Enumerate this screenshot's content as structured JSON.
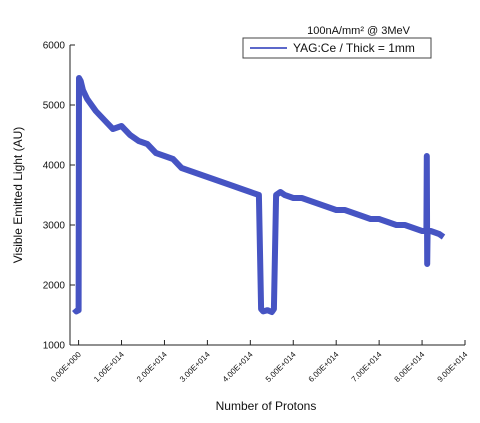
{
  "chart_data": {
    "type": "line",
    "subtitle": "100nA/mm² @ 3MeV",
    "xlabel": "Number of Protons",
    "ylabel": "Visible Emitted Light (AU)",
    "xlim": [
      -20000000000000,
      900000000000000
    ],
    "ylim": [
      1000,
      6000
    ],
    "x_tick_values": [
      0,
      100000000000000,
      200000000000000,
      300000000000000,
      400000000000000,
      500000000000000,
      600000000000000,
      700000000000000,
      800000000000000,
      900000000000000
    ],
    "x_tick_labels": [
      "0.00E+000",
      "1.00E+014",
      "2.00E+014",
      "3.00E+014",
      "4.00E+014",
      "5.00E+014",
      "6.00E+014",
      "7.00E+014",
      "8.00E+014",
      "9.00E+014"
    ],
    "y_tick_values": [
      1000,
      2000,
      3000,
      4000,
      5000,
      6000
    ],
    "y_tick_labels": [
      "1000",
      "2000",
      "3000",
      "4000",
      "5000",
      "6000"
    ],
    "grid": false,
    "legend_position": "top-right",
    "color": "#2636b8",
    "series": [
      {
        "name": "YAG:Ce / Thick = 1mm",
        "color": "#2636b8",
        "x": [
          -10000000000000,
          -5000000000000,
          0,
          1000000000000,
          5000000000000,
          10000000000000,
          20000000000000,
          40000000000000,
          60000000000000,
          80000000000000,
          100000000000000,
          120000000000000,
          140000000000000,
          160000000000000,
          180000000000000,
          200000000000000,
          220000000000000,
          240000000000000,
          260000000000000,
          280000000000000,
          300000000000000,
          320000000000000,
          340000000000000,
          360000000000000,
          380000000000000,
          400000000000000,
          420000000000000,
          425000000000000,
          430000000000000,
          440000000000000,
          450000000000000,
          455000000000000,
          460000000000000,
          470000000000000,
          480000000000000,
          500000000000000,
          520000000000000,
          540000000000000,
          560000000000000,
          580000000000000,
          600000000000000,
          620000000000000,
          640000000000000,
          660000000000000,
          680000000000000,
          700000000000000,
          720000000000000,
          740000000000000,
          760000000000000,
          780000000000000,
          800000000000000,
          810000000000000,
          811000000000000,
          812000000000000,
          813000000000000,
          820000000000000,
          840000000000000,
          850000000000000
        ],
        "y": [
          1600,
          1560,
          1580,
          5450,
          5400,
          5250,
          5100,
          4900,
          4750,
          4600,
          4650,
          4500,
          4400,
          4350,
          4200,
          4150,
          4100,
          3950,
          3900,
          3850,
          3800,
          3750,
          3700,
          3650,
          3600,
          3550,
          3500,
          1600,
          1560,
          1580,
          1550,
          1600,
          3500,
          3550,
          3500,
          3450,
          3450,
          3400,
          3350,
          3300,
          3250,
          3250,
          3200,
          3150,
          3100,
          3100,
          3050,
          3000,
          3000,
          2950,
          2900,
          2900,
          4150,
          2350,
          2900,
          2900,
          2850,
          2800
        ]
      }
    ]
  }
}
